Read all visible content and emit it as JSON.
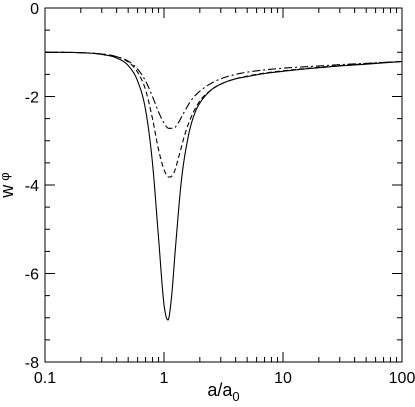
{
  "chart_data": {
    "type": "line",
    "title": "",
    "xlabel": {
      "main": "a/a",
      "sub": "0"
    },
    "ylabel": {
      "main": "w",
      "sub": "φ"
    },
    "xscale": "log",
    "xlim": [
      0.1,
      100
    ],
    "ylim": [
      -8,
      0
    ],
    "x_ticks": [
      {
        "value": 0.1,
        "label": "0.1"
      },
      {
        "value": 1,
        "label": "1"
      },
      {
        "value": 10,
        "label": "10"
      },
      {
        "value": 100,
        "label": "100"
      }
    ],
    "y_ticks": [
      {
        "value": 0,
        "label": "0"
      },
      {
        "value": -2,
        "label": "-2"
      },
      {
        "value": -4,
        "label": "-4"
      },
      {
        "value": -6,
        "label": "-6"
      },
      {
        "value": -8,
        "label": "-8"
      }
    ],
    "grid": false,
    "series": [
      {
        "style": "solid",
        "color": "#000000",
        "x": [
          0.1,
          0.2,
          0.3,
          0.4,
          0.5,
          0.6,
          0.7,
          0.8,
          0.9,
          1.0,
          1.08,
          1.15,
          1.25,
          1.4,
          1.6,
          1.8,
          2.0,
          2.5,
          3.0,
          4.0,
          5.0,
          7.0,
          10,
          15,
          20,
          30,
          50,
          70,
          100
        ],
        "y": [
          -1.0,
          -1.01,
          -1.05,
          -1.13,
          -1.3,
          -1.65,
          -2.3,
          -3.5,
          -5.2,
          -6.7,
          -7.05,
          -6.6,
          -5.4,
          -3.9,
          -2.9,
          -2.4,
          -2.15,
          -1.85,
          -1.72,
          -1.6,
          -1.55,
          -1.48,
          -1.43,
          -1.38,
          -1.35,
          -1.31,
          -1.27,
          -1.24,
          -1.21
        ]
      },
      {
        "style": "dashed",
        "color": "#000000",
        "x": [
          0.1,
          0.2,
          0.3,
          0.4,
          0.5,
          0.6,
          0.7,
          0.8,
          0.9,
          1.0,
          1.1,
          1.2,
          1.35,
          1.5,
          1.7,
          2.0,
          2.5,
          3.0,
          4.0,
          5.0,
          7.0,
          10,
          15,
          20,
          30,
          50,
          70,
          100
        ],
        "y": [
          -1.0,
          -1.01,
          -1.04,
          -1.1,
          -1.22,
          -1.45,
          -1.85,
          -2.5,
          -3.2,
          -3.65,
          -3.82,
          -3.75,
          -3.3,
          -2.85,
          -2.45,
          -2.1,
          -1.85,
          -1.72,
          -1.6,
          -1.54,
          -1.47,
          -1.42,
          -1.37,
          -1.34,
          -1.3,
          -1.26,
          -1.23,
          -1.21
        ]
      },
      {
        "style": "dashdot",
        "color": "#000000",
        "x": [
          0.1,
          0.2,
          0.3,
          0.4,
          0.5,
          0.6,
          0.7,
          0.8,
          0.9,
          1.0,
          1.1,
          1.2,
          1.3,
          1.5,
          1.7,
          2.0,
          2.5,
          3.0,
          4.0,
          5.0,
          7.0,
          10,
          15,
          20,
          30,
          50,
          70,
          100
        ],
        "y": [
          -1.0,
          -1.01,
          -1.04,
          -1.1,
          -1.2,
          -1.38,
          -1.65,
          -2.0,
          -2.35,
          -2.6,
          -2.72,
          -2.72,
          -2.62,
          -2.32,
          -2.08,
          -1.88,
          -1.7,
          -1.6,
          -1.5,
          -1.45,
          -1.4,
          -1.36,
          -1.33,
          -1.31,
          -1.28,
          -1.25,
          -1.23,
          -1.21
        ]
      }
    ]
  }
}
